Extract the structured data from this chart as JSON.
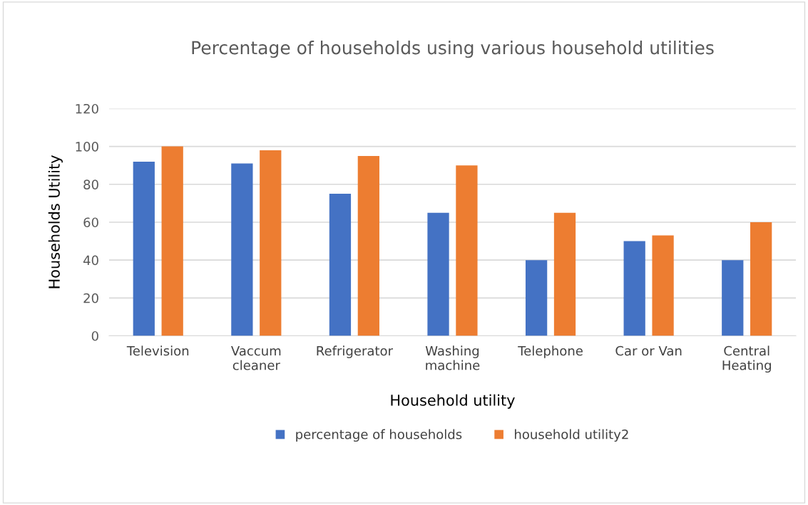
{
  "chart_data": {
    "type": "bar",
    "title": "Percentage of households using various household utilities",
    "xlabel": "Household utility",
    "ylabel": "Households Utility",
    "categories": [
      "Television",
      "Vaccum\ncleaner",
      "Refrigerator",
      "Washing\nmachine",
      "Telephone",
      "Car or Van",
      "Central\nHeating"
    ],
    "series": [
      {
        "name": "percentage of households",
        "color": "#4472c4",
        "values": [
          92,
          91,
          75,
          65,
          40,
          50,
          40
        ]
      },
      {
        "name": "household utility2",
        "color": "#ed7d31",
        "values": [
          100,
          98,
          95,
          90,
          65,
          53,
          60
        ]
      }
    ],
    "ylim": [
      0,
      120
    ],
    "yticks": [
      0,
      20,
      40,
      60,
      80,
      100,
      120
    ],
    "grid": "y",
    "legend": "bottom"
  }
}
